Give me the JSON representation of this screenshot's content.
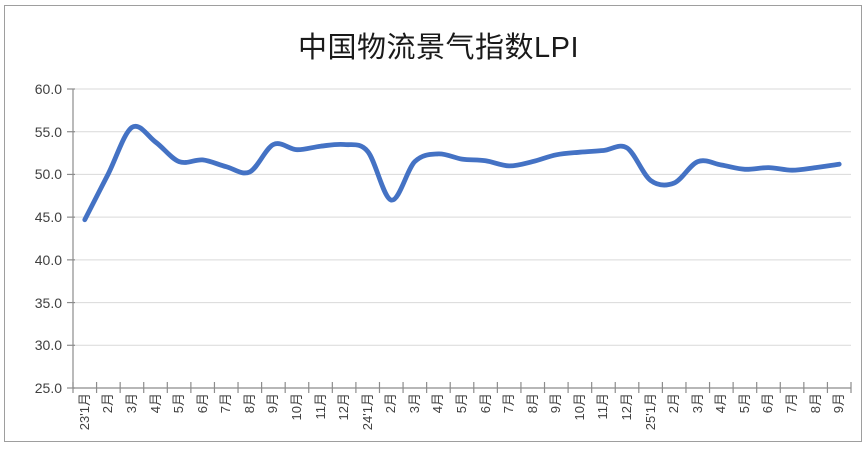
{
  "window": {
    "background": "#ffffff",
    "border_color": "#9e9e9e"
  },
  "chart_data": {
    "type": "line",
    "title": "中国物流景气指数LPI",
    "xlabel": "",
    "ylabel": "",
    "legend": "none",
    "grid": "horizontal",
    "smoothed": true,
    "ylim": [
      25,
      60
    ],
    "ytick_step": 5,
    "ytick_labels": [
      "60.0",
      "55.0",
      "50.0",
      "45.0",
      "40.0",
      "35.0",
      "30.0",
      "25.0"
    ],
    "categories": [
      "23'1月",
      "2月",
      "3月",
      "4月",
      "5月",
      "6月",
      "7月",
      "8月",
      "9月",
      "10月",
      "11月",
      "12月",
      "24'1月",
      "2月",
      "3月",
      "4月",
      "5月",
      "6月",
      "7月",
      "8月",
      "9月",
      "10月",
      "11月",
      "12月",
      "25'1月",
      "2月",
      "3月",
      "4月",
      "5月",
      "6月",
      "7月",
      "8月",
      "9月"
    ],
    "series": [
      {
        "name": "中国物流景气指数LPI",
        "color": "#4472C4",
        "values": [
          44.7,
          50.1,
          55.5,
          53.8,
          51.5,
          51.7,
          50.9,
          50.3,
          53.5,
          52.9,
          53.3,
          53.5,
          52.7,
          47.0,
          51.5,
          52.4,
          51.8,
          51.6,
          51.0,
          51.5,
          52.3,
          52.6,
          52.8,
          53.1,
          49.3,
          49.0,
          51.5,
          51.1,
          50.6,
          50.8,
          50.5,
          50.8,
          51.2
        ]
      }
    ],
    "colors": {
      "gridline": "#d9d9d9",
      "axis": "#8c8c8c",
      "tick_label": "#404040",
      "title": "#1a1a1a"
    }
  }
}
